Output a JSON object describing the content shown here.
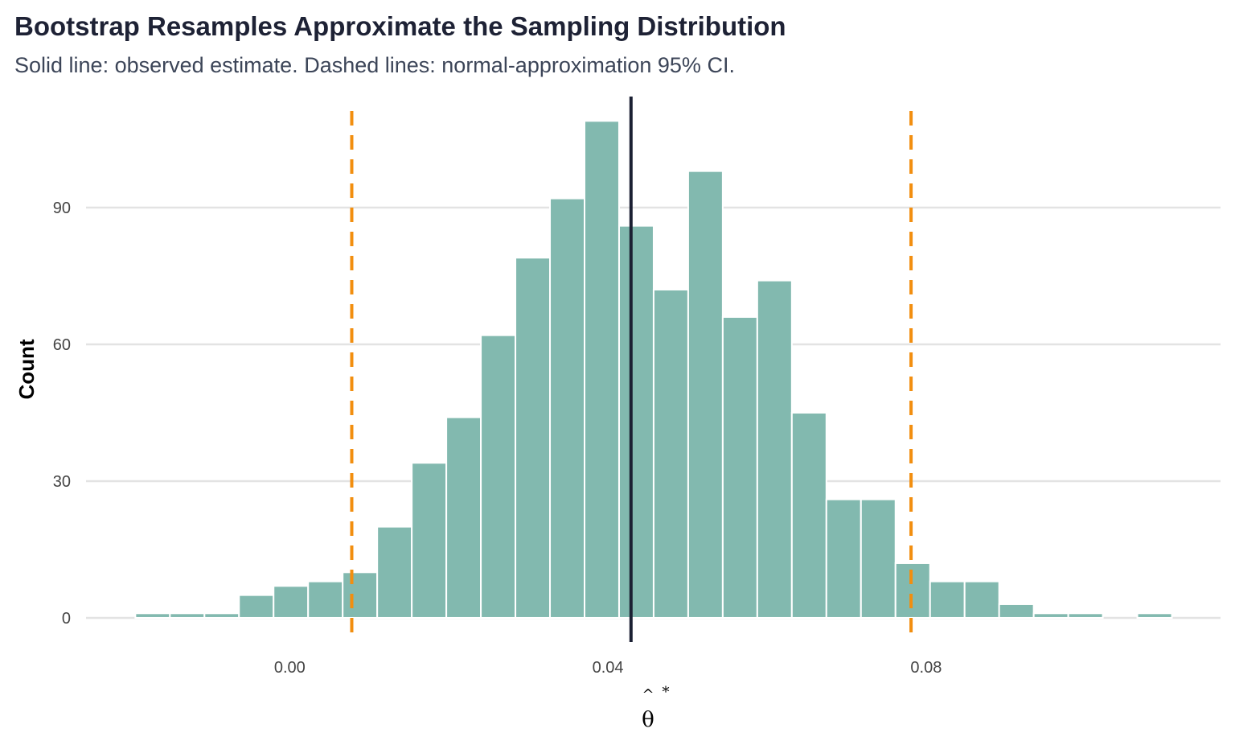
{
  "chart_data": {
    "type": "bar",
    "title": "Bootstrap Resamples Approximate the Sampling Distribution",
    "subtitle": "Solid line: observed estimate. Dashed lines: normal-approximation 95% CI.",
    "xlabel": {
      "symbol": "θ",
      "hat": "^",
      "superscript": "*"
    },
    "ylabel": "Count",
    "xlim": [
      -0.0256,
      0.117
    ],
    "ylim": [
      -5.3,
      114.35
    ],
    "x_ticks": [
      {
        "value": 0.0,
        "label": "0.00"
      },
      {
        "value": 0.04,
        "label": "0.04"
      },
      {
        "value": 0.08,
        "label": "0.08"
      }
    ],
    "y_ticks": [
      {
        "value": 0,
        "label": "0"
      },
      {
        "value": 30,
        "label": "30"
      },
      {
        "value": 60,
        "label": "60"
      },
      {
        "value": 90,
        "label": "90"
      }
    ],
    "grid": "horizontal",
    "bin_start": -0.0194,
    "bin_width": 0.004343,
    "counts": [
      1,
      1,
      1,
      5,
      7,
      8,
      10,
      20,
      34,
      44,
      62,
      79,
      92,
      109,
      86,
      72,
      98,
      66,
      74,
      45,
      26,
      26,
      12,
      8,
      8,
      3,
      1,
      1,
      0,
      1
    ],
    "observed_estimate": 0.0429,
    "ci_lower": 0.0078,
    "ci_upper": 0.0781,
    "colors": {
      "bars": "#82b9af",
      "bar_outline": "#ffffff",
      "observed_line": "#1b2033",
      "ci_lines": "#f28e0f",
      "grid": "#e3e3e3"
    }
  }
}
